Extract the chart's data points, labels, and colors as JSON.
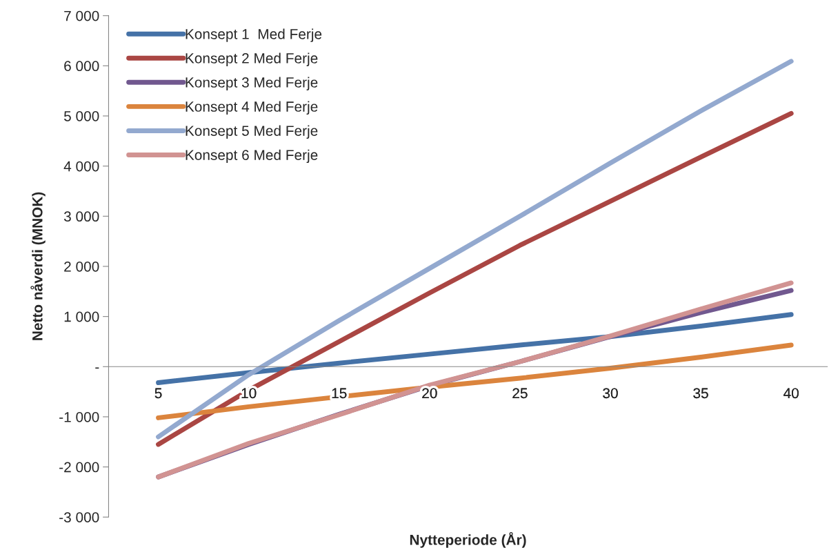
{
  "chart_data": {
    "type": "line",
    "xlabel": "Nytteperiode (År)",
    "ylabel": "Netto nåverdi (MNOK)",
    "categories": [
      "5",
      "10",
      "15",
      "20",
      "25",
      "30",
      "35",
      "40"
    ],
    "series": [
      {
        "name": "Konsept 1  Med Ferje",
        "color": "#4572a7",
        "values": [
          -320,
          -120,
          70,
          250,
          430,
          600,
          810,
          1040
        ]
      },
      {
        "name": "Konsept 2 Med Ferje",
        "color": "#aa4643",
        "values": [
          -1550,
          -470,
          500,
          1470,
          2420,
          3300,
          4180,
          5050
        ]
      },
      {
        "name": "Konsept 3 Med Ferje",
        "color": "#71588f",
        "values": [
          -2200,
          -1550,
          -950,
          -380,
          100,
          600,
          1080,
          1520
        ]
      },
      {
        "name": "Konsept 4 Med Ferje",
        "color": "#db843d",
        "values": [
          -1020,
          -800,
          -600,
          -410,
          -230,
          -30,
          190,
          430
        ]
      },
      {
        "name": "Konsept 5 Med Ferje",
        "color": "#93a9cf",
        "values": [
          -1400,
          -160,
          920,
          1960,
          3000,
          4060,
          5100,
          6090
        ]
      },
      {
        "name": "Konsept 6 Med Ferje",
        "color": "#d19392",
        "values": [
          -2200,
          -1530,
          -960,
          -370,
          100,
          610,
          1150,
          1670
        ]
      }
    ],
    "ylim": [
      -3000,
      7000
    ],
    "yticks": [
      {
        "value": -3000,
        "label": "-3 000"
      },
      {
        "value": -2000,
        "label": "-2 000"
      },
      {
        "value": -1000,
        "label": "-1 000"
      },
      {
        "value": 0,
        "label": "-"
      },
      {
        "value": 1000,
        "label": "1 000"
      },
      {
        "value": 2000,
        "label": "2 000"
      },
      {
        "value": 3000,
        "label": "3 000"
      },
      {
        "value": 4000,
        "label": "4 000"
      },
      {
        "value": 5000,
        "label": "5 000"
      },
      {
        "value": 6000,
        "label": "6 000"
      },
      {
        "value": 7000,
        "label": "7 000"
      }
    ],
    "grid": false,
    "legend": "top left",
    "marker": "none",
    "line_style": "solid"
  }
}
